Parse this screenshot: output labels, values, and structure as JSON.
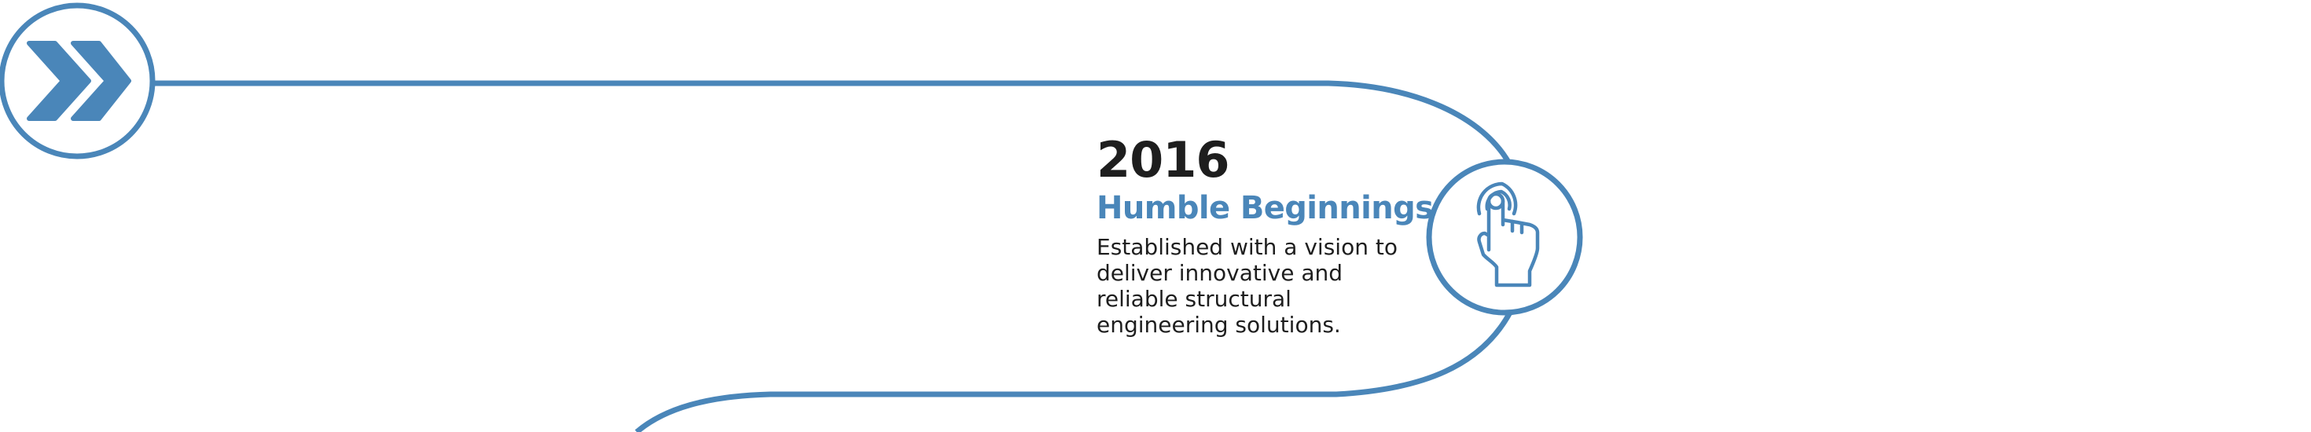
{
  "colors": {
    "accent": "#4a86b9",
    "text": "#1e1e1e",
    "background": "#ffffff"
  },
  "start_node": {
    "icon": "double-chevron-right-icon"
  },
  "milestones": [
    {
      "year": "2016",
      "title": "Humble Beginnings",
      "description": "Established with a vision to deliver innovative and reliable structural engineering solutions.",
      "icon": "touch-gesture-icon"
    }
  ]
}
